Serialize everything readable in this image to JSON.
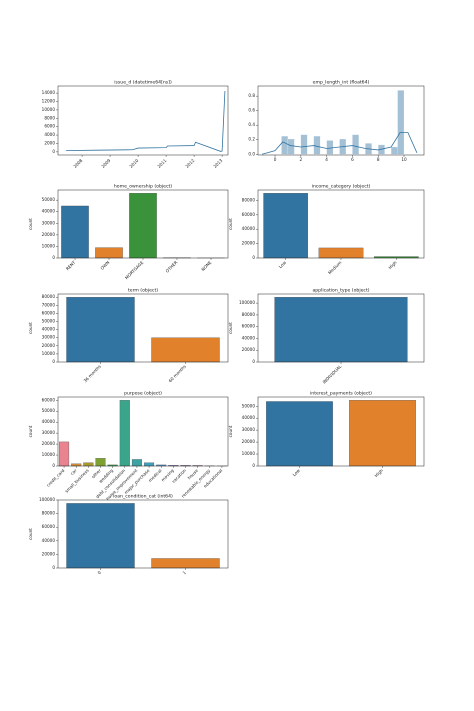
{
  "chart_data": [
    {
      "type": "line",
      "title": "issue_d (datetime64[ns])",
      "x": [
        2007.43,
        2008.5,
        2009.8,
        2010.0,
        2011.0,
        2011.05,
        2012.0,
        2012.05,
        2012.95,
        2013.0,
        2013.1
      ],
      "values": [
        300,
        400,
        500,
        900,
        1000,
        1400,
        1500,
        2300,
        100,
        200,
        14500
      ],
      "color": "#3274a1",
      "xlim": [
        2007.14,
        2013.21
      ],
      "xticks": [
        2008,
        2009,
        2010,
        2011,
        2012,
        2013
      ],
      "ylim": [
        -750,
        15700
      ],
      "yticks": [
        0,
        2000,
        4000,
        6000,
        8000,
        10000,
        12000,
        14000
      ]
    },
    {
      "type": "histogram",
      "title": "emp_length_int (float64)",
      "bins": [
        0,
        0.5,
        1,
        1.5,
        2,
        2.5,
        3,
        3.5,
        4,
        4.5,
        5,
        5.5,
        6,
        6.5,
        7,
        7.5,
        8,
        8.5,
        9,
        9.5,
        10
      ],
      "values": [
        0,
        0.25,
        0.21,
        0,
        0.27,
        0,
        0.25,
        0,
        0.19,
        0,
        0.21,
        0,
        0.27,
        0,
        0.15,
        0,
        0.13,
        0,
        0.1,
        0.88
      ],
      "color": "#3274a1",
      "kde_x": [
        -1,
        0,
        0.6,
        1.2,
        2,
        3,
        4,
        5,
        6,
        7,
        8,
        9,
        9.7,
        10.3,
        11
      ],
      "kde_y": [
        0,
        0.05,
        0.17,
        0.12,
        0.1,
        0.12,
        0.08,
        0.1,
        0.12,
        0.08,
        0.06,
        0.1,
        0.3,
        0.3,
        0.02
      ],
      "xlim": [
        -1.32,
        11.55
      ],
      "xticks": [
        0,
        2,
        4,
        6,
        8,
        10
      ],
      "ylim": [
        -0.01,
        0.94
      ],
      "yticks": [
        {
          "value": 0,
          "label": "0.0"
        },
        {
          "value": 0.2,
          "label": "0.2"
        },
        {
          "value": 0.4,
          "label": "0.4"
        },
        {
          "value": 0.6,
          "label": "0.6"
        },
        {
          "value": 0.8,
          "label": "0.8"
        }
      ]
    },
    {
      "type": "bar",
      "title": "home_ownership (object)",
      "ylabel": "count",
      "categories": [
        "RENT",
        "OWN",
        "MORTGAGE",
        "OTHER",
        "NONE"
      ],
      "values": [
        45000,
        9000,
        56000,
        300,
        50
      ],
      "colors": [
        "#3274a1",
        "#e1812c",
        "#3a923a",
        "#c03d3e",
        "#9372b2"
      ],
      "ylim": [
        0,
        58800
      ],
      "yticks": [
        0,
        10000,
        20000,
        30000,
        40000,
        50000
      ]
    },
    {
      "type": "bar",
      "title": "income_category (object)",
      "ylabel": "count",
      "categories": [
        "Low",
        "Medium",
        "High"
      ],
      "values": [
        90000,
        14000,
        2000
      ],
      "colors": [
        "#3274a1",
        "#e1812c",
        "#3a923a"
      ],
      "ylim": [
        0,
        94500
      ],
      "yticks": [
        0,
        20000,
        40000,
        60000,
        80000
      ]
    },
    {
      "type": "bar",
      "title": "term (object)",
      "ylabel": "count",
      "categories": [
        " 36 months",
        " 60 months"
      ],
      "values": [
        80000,
        30000
      ],
      "colors": [
        "#3274a1",
        "#e1812c"
      ],
      "ylim": [
        0,
        84000
      ],
      "yticks": [
        0,
        10000,
        20000,
        30000,
        40000,
        50000,
        60000,
        70000,
        80000
      ]
    },
    {
      "type": "bar",
      "title": "application_type (object)",
      "ylabel": "count",
      "categories": [
        "INDIVIDUAL"
      ],
      "values": [
        110000
      ],
      "colors": [
        "#3274a1"
      ],
      "ylim": [
        0,
        115500
      ],
      "yticks": [
        0,
        20000,
        40000,
        60000,
        80000,
        100000
      ]
    },
    {
      "type": "bar",
      "title": "purpose (object)",
      "ylabel": "count",
      "categories": [
        "credit_card",
        "car",
        "small_business",
        "other",
        "wedding",
        "debt_consolidation",
        "home_improvement",
        "major_purchase",
        "medical",
        "moving",
        "vacation",
        "house",
        "renewable_energy",
        "educational"
      ],
      "values": [
        22000,
        2000,
        3000,
        7000,
        1000,
        60000,
        6000,
        3000,
        1000,
        700,
        600,
        500,
        100,
        50
      ],
      "colors": [
        "#e8838f",
        "#d68b39",
        "#a89a32",
        "#7da133",
        "#36a449",
        "#3aa58a",
        "#3ca3a5",
        "#3e9fbd",
        "#4d97e0",
        "#9a8ae8",
        "#c97ce6",
        "#e673c9",
        "#e873a4",
        "#e97b82"
      ],
      "ylim": [
        0,
        63000
      ],
      "yticks": [
        0,
        10000,
        20000,
        30000,
        40000,
        50000,
        60000
      ]
    },
    {
      "type": "bar",
      "title": "interest_payments (object)",
      "ylabel": "count",
      "categories": [
        "Low",
        "High"
      ],
      "values": [
        54000,
        55000
      ],
      "colors": [
        "#3274a1",
        "#e1812c"
      ],
      "ylim": [
        0,
        57750
      ],
      "yticks": [
        0,
        10000,
        20000,
        30000,
        40000,
        50000
      ]
    },
    {
      "type": "bar",
      "title": "loan_condition_cat (int64)",
      "ylabel": "count",
      "categories": [
        "0",
        "1"
      ],
      "values": [
        95000,
        14000
      ],
      "colors": [
        "#3274a1",
        "#e1812c"
      ],
      "ylim": [
        0,
        100000
      ],
      "yticks": [
        0,
        20000,
        40000,
        60000,
        80000,
        100000
      ]
    }
  ]
}
